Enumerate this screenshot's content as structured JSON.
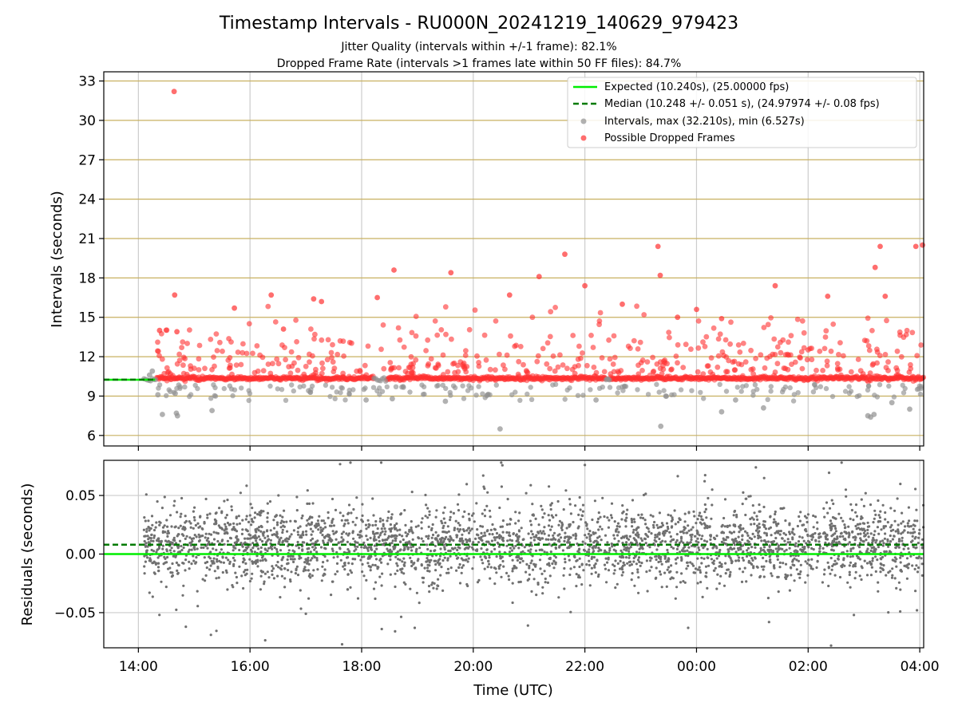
{
  "chart_data": [
    {
      "type": "scatter",
      "title": "Timestamp Intervals - RU000N_20241219_140629_979423",
      "subtitle_lines": [
        "Jitter Quality (intervals within +/-1 frame): 82.1%",
        "Dropped Frame Rate (intervals >1 frames late within 50 FF files): 84.7%"
      ],
      "xlabel": "",
      "ylabel": "Intervals (seconds)",
      "x_start_time": "14:00",
      "x_range_hours": [
        -0.62,
        14.07
      ],
      "ylim": [
        5.2,
        33.7
      ],
      "yticks": [
        6,
        9,
        12,
        15,
        18,
        21,
        24,
        27,
        30,
        33
      ],
      "grid": true,
      "hlines_color": "#c8b060",
      "legend_position": "top-right",
      "legend": [
        {
          "label": "Expected (10.240s), (25.00000 fps)",
          "style": "solid",
          "color": "#00ee00"
        },
        {
          "label": "Median (10.248 +/- 0.051 s), (24.97974 +/- 0.08 fps)",
          "style": "dashed",
          "color": "#007a00"
        },
        {
          "label": "Intervals, max (32.210s), min (6.527s)",
          "style": "marker",
          "color": "#909090"
        },
        {
          "label": "Possible Dropped Frames",
          "style": "marker",
          "color": "#ff3030"
        }
      ],
      "series": [
        {
          "name": "Expected",
          "kind": "hline",
          "value": 10.24,
          "color": "#00ee00"
        },
        {
          "name": "Median",
          "kind": "hline",
          "value": 10.248,
          "color": "#007a00"
        },
        {
          "name": "Intervals",
          "kind": "scatter",
          "color": "#909090",
          "sample_points": [
            [
              0.35,
              9.1
            ],
            [
              0.43,
              7.6
            ],
            [
              0.66,
              9.2
            ],
            [
              0.68,
              7.7
            ],
            [
              0.7,
              7.5
            ],
            [
              1.32,
              7.9
            ],
            [
              4.08,
              8.7
            ],
            [
              4.55,
              8.8
            ],
            [
              5.5,
              8.6
            ],
            [
              6.48,
              6.5
            ],
            [
              8.2,
              8.7
            ],
            [
              9.36,
              6.7
            ],
            [
              9.45,
              9.0
            ],
            [
              10.45,
              7.8
            ],
            [
              10.7,
              8.7
            ],
            [
              11.2,
              8.1
            ],
            [
              13.07,
              7.5
            ],
            [
              13.12,
              7.4
            ],
            [
              13.18,
              7.6
            ],
            [
              13.5,
              8.5
            ],
            [
              13.82,
              8.0
            ],
            [
              0.2,
              10.6
            ],
            [
              0.25,
              10.9
            ]
          ]
        },
        {
          "name": "Possible Dropped Frames",
          "kind": "scatter",
          "color": "#ff3030",
          "sample_points": [
            [
              0.64,
              32.2
            ],
            [
              0.65,
              16.7
            ],
            [
              0.38,
              14.0
            ],
            [
              0.69,
              13.9
            ],
            [
              1.72,
              15.7
            ],
            [
              2.38,
              16.7
            ],
            [
              2.6,
              14.1
            ],
            [
              3.14,
              16.4
            ],
            [
              3.28,
              16.2
            ],
            [
              4.28,
              16.5
            ],
            [
              4.58,
              18.6
            ],
            [
              5.6,
              18.4
            ],
            [
              6.65,
              16.7
            ],
            [
              7.18,
              18.1
            ],
            [
              7.64,
              19.8
            ],
            [
              8.0,
              17.4
            ],
            [
              8.67,
              16.0
            ],
            [
              9.31,
              20.4
            ],
            [
              9.35,
              18.2
            ],
            [
              9.66,
              15.0
            ],
            [
              10.0,
              15.6
            ],
            [
              10.45,
              14.9
            ],
            [
              11.41,
              17.4
            ],
            [
              12.35,
              16.6
            ],
            [
              13.29,
              20.4
            ],
            [
              13.38,
              16.6
            ],
            [
              13.93,
              20.4
            ],
            [
              14.05,
              20.5
            ],
            [
              13.2,
              18.8
            ]
          ]
        }
      ]
    },
    {
      "type": "scatter",
      "title": "",
      "xlabel": "Time (UTC)",
      "ylabel": "Residuals (seconds)",
      "xtick_labels": [
        "14:00",
        "16:00",
        "18:00",
        "20:00",
        "22:00",
        "00:00",
        "02:00",
        "04:00"
      ],
      "x_range_hours": [
        -0.62,
        14.07
      ],
      "ylim": [
        -0.08,
        0.08
      ],
      "ytick_labels": [
        "0.05",
        "0.00",
        "−0.05"
      ],
      "ytick_values": [
        0.05,
        0.0,
        -0.05
      ],
      "grid": true,
      "series": [
        {
          "name": "Expected",
          "kind": "hline",
          "value": 0.0,
          "color": "#00ee00"
        },
        {
          "name": "Median",
          "kind": "hline",
          "value": 0.008,
          "color": "#007a00"
        },
        {
          "name": "Residuals",
          "kind": "scatter",
          "color": "#707070",
          "sample_points": [
            [
              0.2,
              -0.033
            ],
            [
              0.5,
              -0.028
            ],
            [
              0.85,
              -0.062
            ],
            [
              1.3,
              -0.069
            ],
            [
              3.0,
              -0.051
            ],
            [
              3.65,
              -0.077
            ],
            [
              4.36,
              -0.064
            ],
            [
              4.6,
              -0.066
            ],
            [
              6.98,
              -0.061
            ],
            [
              9.85,
              -0.063
            ],
            [
              11.3,
              -0.058
            ],
            [
              12.82,
              -0.052
            ],
            [
              13.65,
              -0.049
            ],
            [
              13.95,
              -0.048
            ],
            [
              3.8,
              0.078
            ],
            [
              4.35,
              0.078
            ],
            [
              6.5,
              0.078
            ],
            [
              8.0,
              0.076
            ],
            [
              12.6,
              0.078
            ]
          ]
        }
      ]
    }
  ]
}
